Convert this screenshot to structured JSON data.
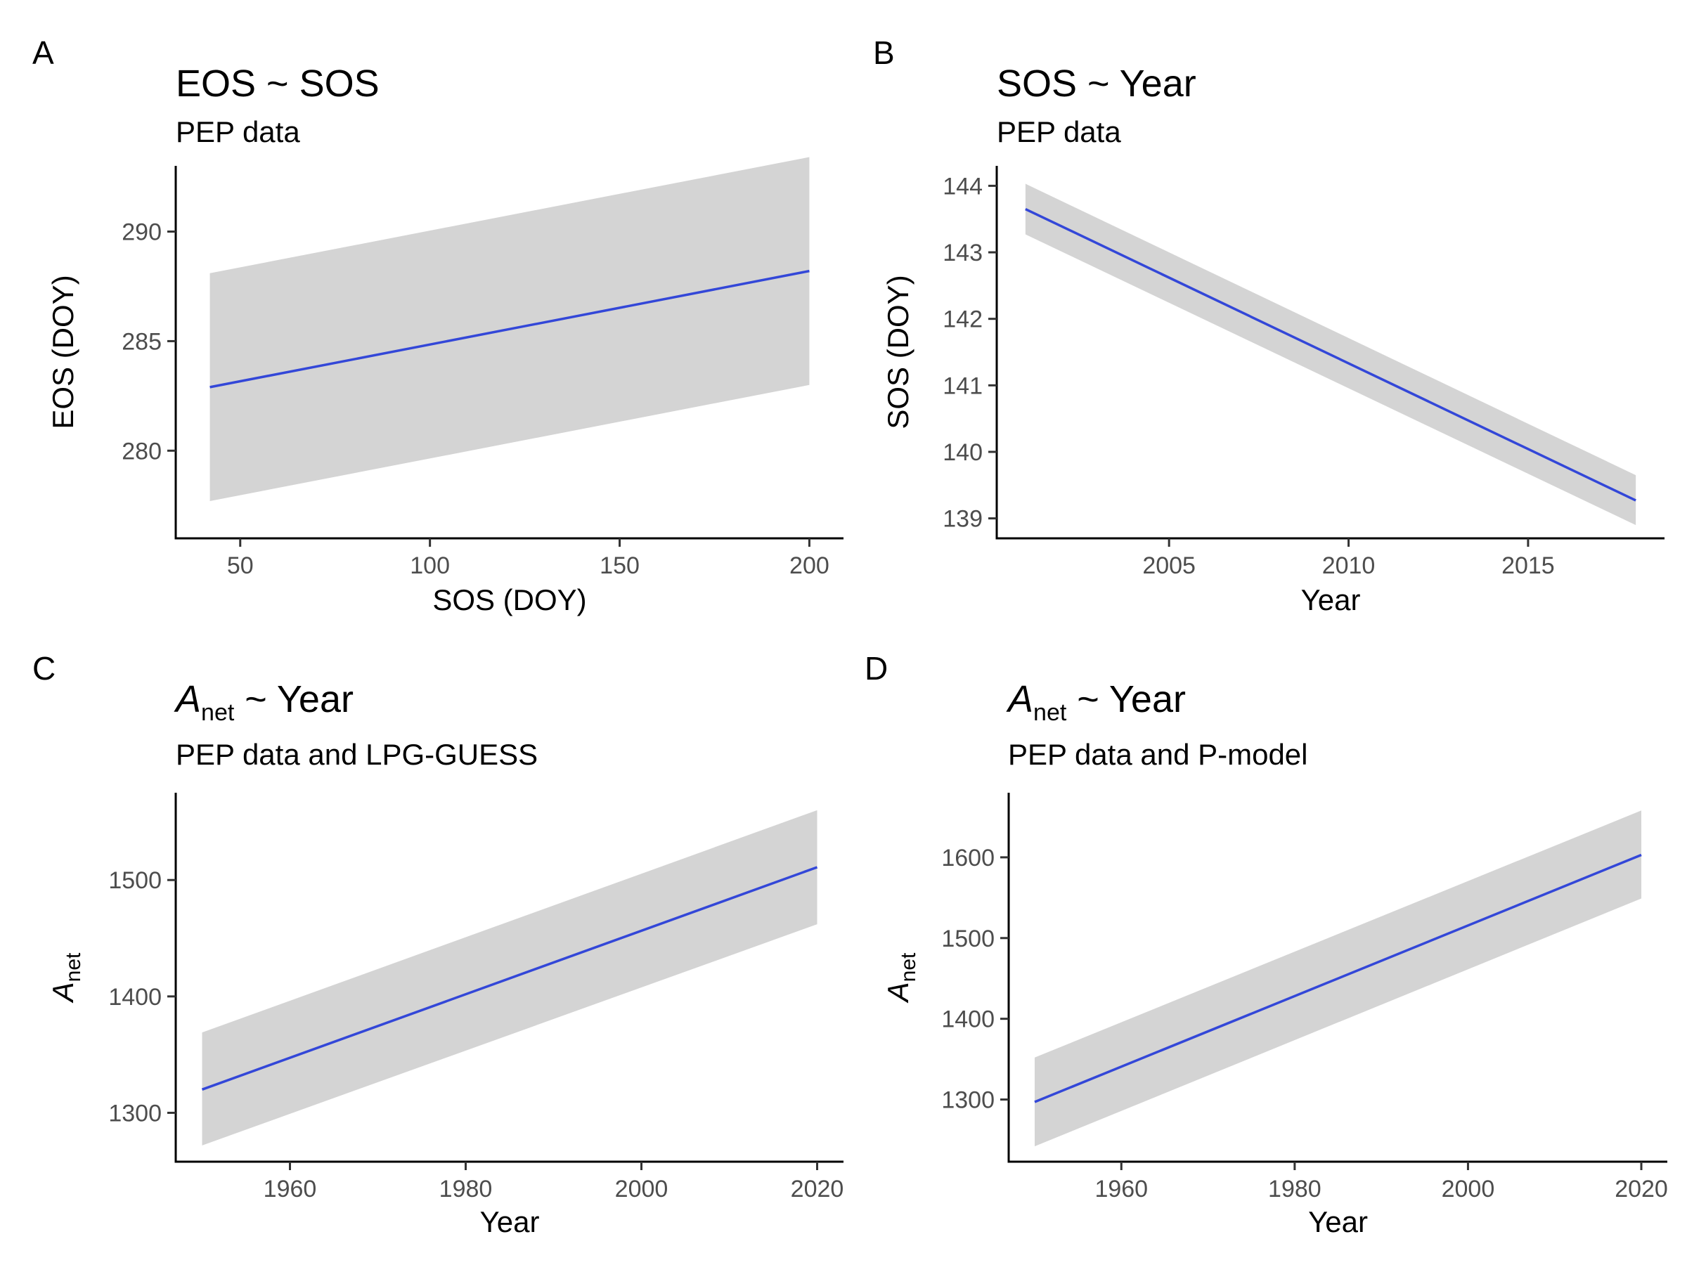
{
  "chart_data": [
    {
      "panel": "A",
      "type": "line",
      "title": "EOS ~ SOS",
      "subtitle": "PEP data",
      "xlabel": "SOS (DOY)",
      "ylabel": "EOS (DOY)",
      "xlim": [
        33,
        209
      ],
      "ylim": [
        276,
        293
      ],
      "xticks": [
        50,
        100,
        150,
        200
      ],
      "yticks": [
        280,
        285,
        290
      ],
      "series": [
        {
          "x": [
            42,
            200
          ],
          "y": [
            282.9,
            288.2
          ],
          "lower": [
            277.7,
            283.0
          ],
          "upper": [
            288.1,
            293.4
          ],
          "color": "#3347d8"
        }
      ],
      "ribbon_color": "#d4d4d4",
      "grid": false
    },
    {
      "panel": "B",
      "type": "line",
      "title": "SOS ~ Year",
      "subtitle": "PEP data",
      "xlabel": "Year",
      "ylabel": "SOS (DOY)",
      "xlim": [
        2000.2,
        2018.8
      ],
      "ylim": [
        138.7,
        144.3
      ],
      "xticks": [
        2005,
        2010,
        2015
      ],
      "yticks": [
        139,
        140,
        141,
        142,
        143,
        144
      ],
      "series": [
        {
          "x": [
            2001,
            2018
          ],
          "y": [
            143.65,
            139.27
          ],
          "lower": [
            143.27,
            138.9
          ],
          "upper": [
            144.03,
            139.65
          ],
          "color": "#3347d8"
        }
      ],
      "ribbon_color": "#d4d4d4",
      "grid": false
    },
    {
      "panel": "C",
      "type": "line",
      "title": "A",
      "title_sub": "net",
      "title_rest": " ~ Year",
      "subtitle": "PEP data and LPG-GUESS",
      "xlabel": "Year",
      "ylabel": "A",
      "ylabel_sub": "net",
      "xlim": [
        1947,
        2023
      ],
      "ylim": [
        1258,
        1575
      ],
      "xticks": [
        1960,
        1980,
        2000,
        2020
      ],
      "yticks": [
        1300,
        1400,
        1500
      ],
      "series": [
        {
          "x": [
            1950,
            2020
          ],
          "y": [
            1320,
            1511
          ],
          "lower": [
            1272,
            1462
          ],
          "upper": [
            1369,
            1560
          ],
          "color": "#3347d8"
        }
      ],
      "ribbon_color": "#d4d4d4",
      "grid": false
    },
    {
      "panel": "D",
      "type": "line",
      "title": "A",
      "title_sub": "net",
      "title_rest": " ~ Year",
      "subtitle": "PEP data and P-model",
      "xlabel": "Year",
      "ylabel": "A",
      "ylabel_sub": "net",
      "xlim": [
        1947,
        2023
      ],
      "ylim": [
        1223,
        1680
      ],
      "xticks": [
        1960,
        1980,
        2000,
        2020
      ],
      "yticks": [
        1300,
        1400,
        1500,
        1600
      ],
      "series": [
        {
          "x": [
            1950,
            2020
          ],
          "y": [
            1297,
            1603
          ],
          "lower": [
            1242,
            1549
          ],
          "upper": [
            1352,
            1658
          ],
          "color": "#3347d8"
        }
      ],
      "ribbon_color": "#d4d4d4",
      "grid": false
    }
  ]
}
